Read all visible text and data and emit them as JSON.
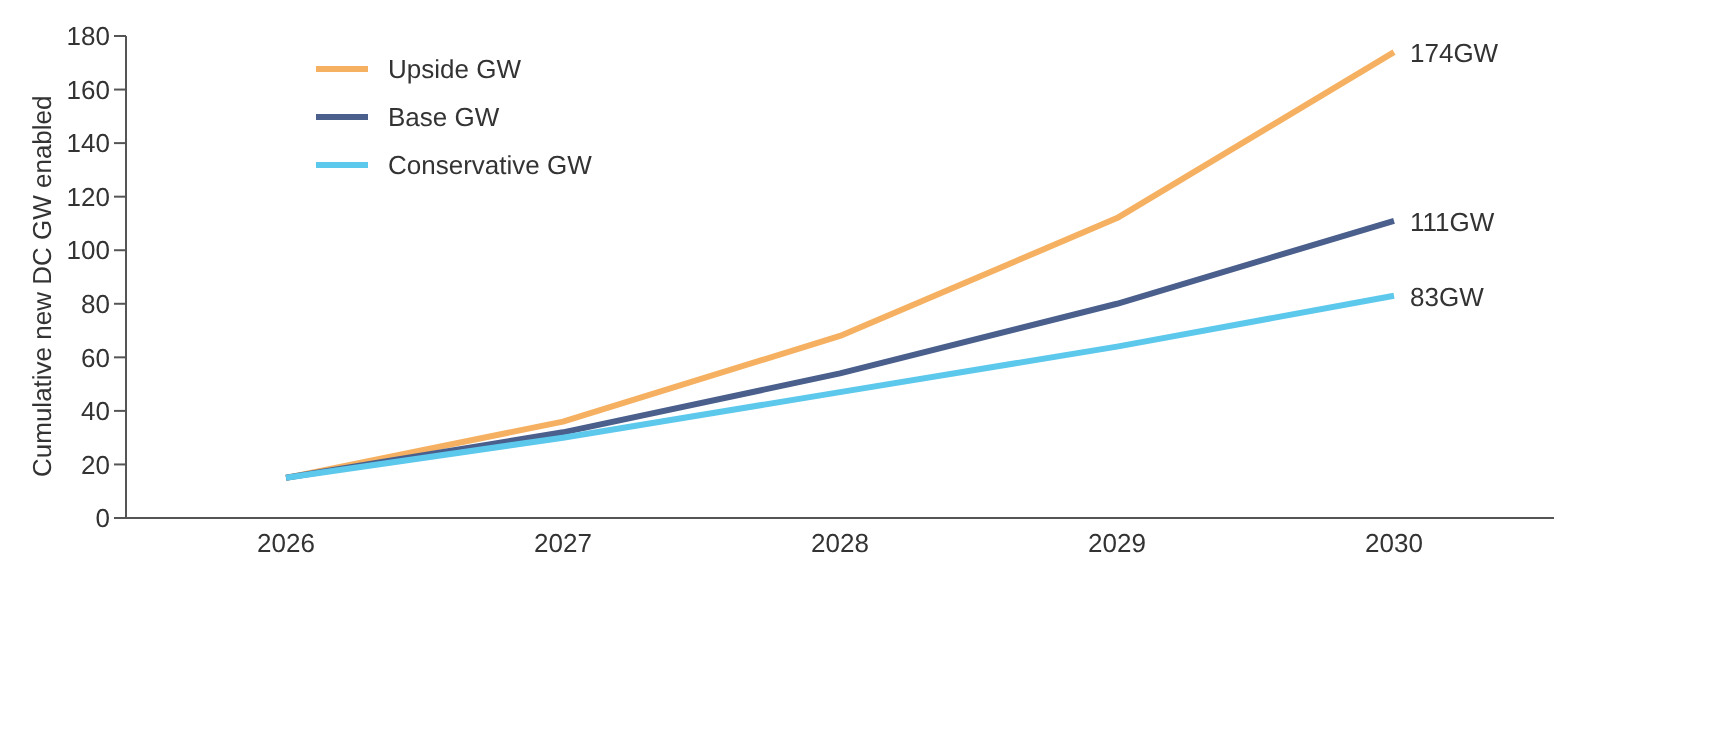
{
  "chart_data": {
    "type": "line",
    "ylabel": "Cumulative new DC GW enabled",
    "categories": [
      "2026",
      "2027",
      "2028",
      "2029",
      "2030"
    ],
    "series": [
      {
        "name": "Upside GW",
        "color": "#f5b161",
        "values": [
          15,
          36,
          68,
          112,
          174
        ],
        "value_labels": [
          null,
          null,
          null,
          null,
          "174GW"
        ]
      },
      {
        "name": "Base GW",
        "color": "#4a5f8c",
        "values": [
          15,
          32,
          54,
          80,
          111
        ],
        "value_labels": [
          null,
          null,
          null,
          null,
          "111GW"
        ]
      },
      {
        "name": "Conservative GW",
        "color": "#5cc8ec",
        "values": [
          15,
          30,
          47,
          64,
          83
        ],
        "value_labels": [
          null,
          null,
          null,
          null,
          "83GW"
        ]
      }
    ],
    "ylim": [
      0,
      180
    ],
    "yticks": [
      0,
      20,
      40,
      60,
      80,
      100,
      120,
      140,
      160,
      180
    ],
    "grid": false,
    "legend": "top left",
    "marker": "none",
    "line_style": "solid"
  }
}
